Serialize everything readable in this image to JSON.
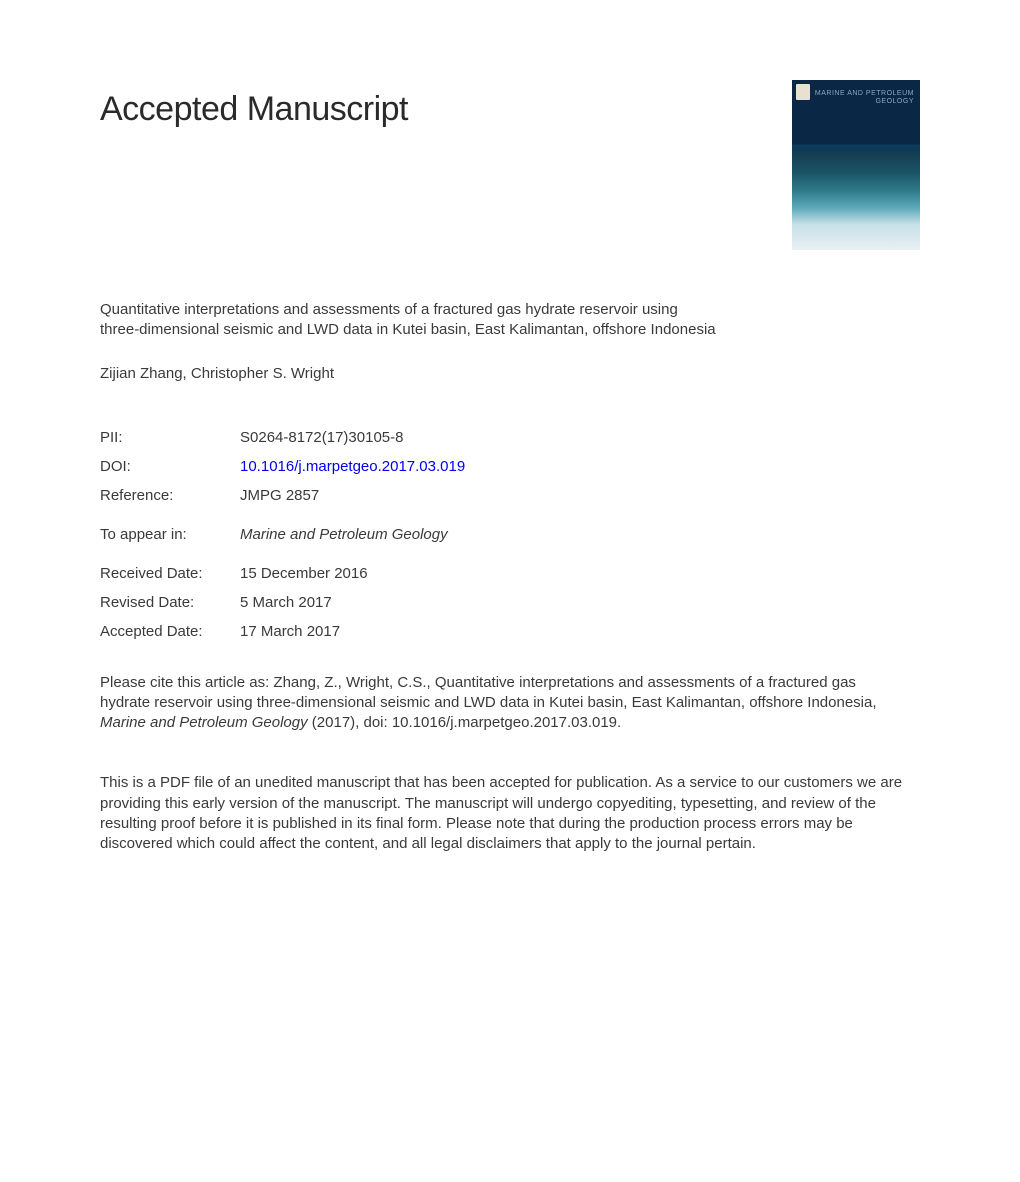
{
  "header": {
    "title": "Accepted Manuscript"
  },
  "cover": {
    "journal_name": "MARINE AND\nPETROLEUM\nGEOLOGY",
    "bg_top": "#0a2845",
    "bg_gradient_colors": [
      "#0a2845",
      "#0e3a5a",
      "#153a4e",
      "#1a5668",
      "#2e7a8a",
      "#5aa8b8",
      "#c8e0e8",
      "#e8f0f4"
    ]
  },
  "article": {
    "title": "Quantitative interpretations and assessments of a fractured gas hydrate reservoir using three-dimensional seismic and LWD data in Kutei basin, East Kalimantan, offshore Indonesia",
    "authors": "Zijian Zhang, Christopher S. Wright"
  },
  "meta": {
    "pii_label": "PII:",
    "pii_value": "S0264-8172(17)30105-8",
    "doi_label": "DOI:",
    "doi_value": "10.1016/j.marpetgeo.2017.03.019",
    "reference_label": "Reference:",
    "reference_value": "JMPG 2857",
    "appear_label": "To appear in:",
    "appear_value": "Marine and Petroleum Geology",
    "received_label": "Received Date:",
    "received_value": "15 December 2016",
    "revised_label": "Revised Date:",
    "revised_value": "5 March 2017",
    "accepted_label": "Accepted Date:",
    "accepted_value": "17 March 2017"
  },
  "citation": {
    "prefix": "Please cite this article as: Zhang, Z., Wright, C.S., Quantitative interpretations and assessments of a fractured gas hydrate reservoir using three-dimensional seismic and LWD data in Kutei basin, East Kalimantan, offshore Indonesia, ",
    "journal": "Marine and Petroleum Geology",
    "suffix": " (2017), doi: 10.1016/j.marpetgeo.2017.03.019."
  },
  "disclaimer": "This is a PDF file of an unedited manuscript that has been accepted for publication. As a service to our customers we are providing this early version of the manuscript. The manuscript will undergo copyediting, typesetting, and review of the resulting proof before it is published in its final form. Please note that during the production process errors may be discovered which could affect the content, and all legal disclaimers that apply to the journal pertain.",
  "colors": {
    "text": "#3a3a3a",
    "title": "#2a2a2a",
    "link": "#0000ee",
    "background": "#ffffff"
  },
  "typography": {
    "title_fontsize": 34,
    "body_fontsize": 15,
    "line_height": 1.35,
    "font_family": "Arial, Helvetica, sans-serif"
  }
}
